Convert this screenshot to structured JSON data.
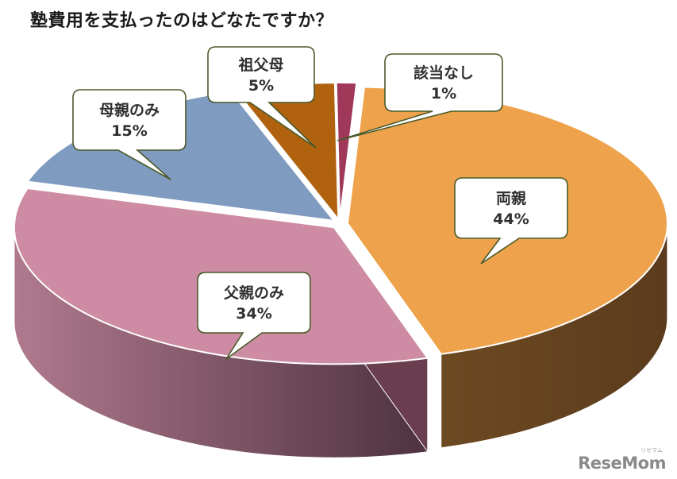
{
  "title": "塾費用を支払ったのはどなたですか？",
  "chart_data": {
    "type": "pie",
    "title": "塾費用を支払ったのはどなたですか？",
    "slices": [
      {
        "label": "両親",
        "value": 44,
        "value_label": "44%",
        "color": "#eea24b",
        "side_color": "#5f3f1f"
      },
      {
        "label": "父親のみ",
        "value": 34,
        "value_label": "34%",
        "color": "#cd8ca3",
        "side_color": "#7a4b5e"
      },
      {
        "label": "母親のみ",
        "value": 15,
        "value_label": "15%",
        "color": "#7f9bc0",
        "side_color": "#3c4b60"
      },
      {
        "label": "祖父母",
        "value": 5,
        "value_label": "5%",
        "color": "#b0620e",
        "side_color": "#5a3208"
      },
      {
        "label": "該当なし",
        "value": 1,
        "value_label": "1%",
        "color": "#a0385a",
        "side_color": "#4d1a2b"
      }
    ]
  },
  "logo": {
    "text": "ReseMom",
    "small": "リセマム"
  }
}
